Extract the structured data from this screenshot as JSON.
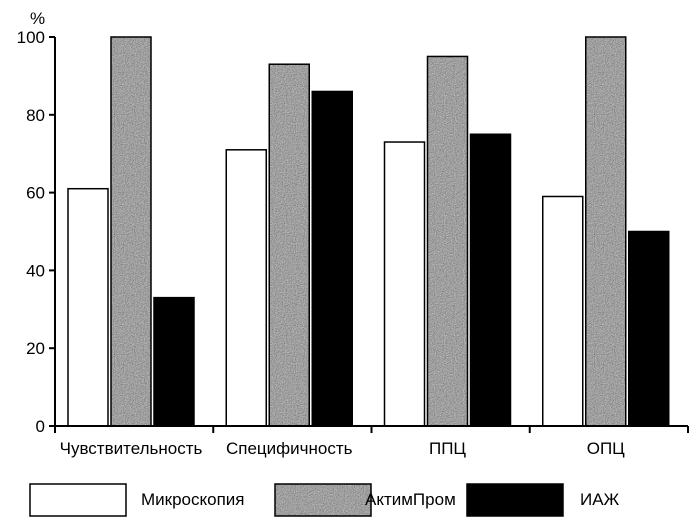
{
  "chart_data": {
    "type": "bar",
    "ylabel": "%",
    "ylim": [
      0,
      100
    ],
    "yticks": [
      0,
      20,
      40,
      60,
      80,
      100
    ],
    "grid": false,
    "legend_position": "bottom",
    "categories": [
      "Чувствительность",
      "Специфичность",
      "ППЦ",
      "ОПЦ"
    ],
    "series": [
      {
        "name": "Микроскопия",
        "values": [
          61,
          71,
          73,
          59
        ],
        "fill": "#ffffff",
        "pattern": "none"
      },
      {
        "name": "АктимПром",
        "values": [
          100,
          93,
          95,
          100
        ],
        "fill": "#8c8c8c",
        "pattern": "speckle"
      },
      {
        "name": "ИАЖ",
        "values": [
          33,
          86,
          75,
          50
        ],
        "fill": "#000000",
        "pattern": "none"
      }
    ]
  }
}
